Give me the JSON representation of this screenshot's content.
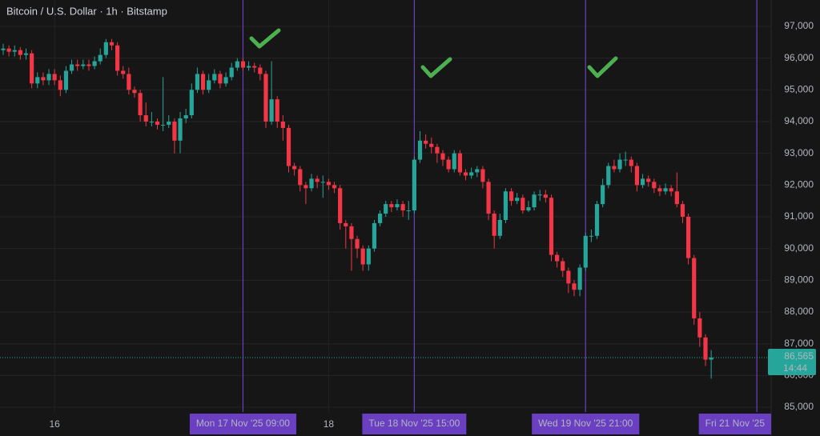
{
  "chart_data": {
    "type": "candlestick",
    "title": "Bitcoin / U.S. Dollar · 1h · Bitstamp",
    "categories": [
      null,
      null,
      null,
      null,
      null,
      null,
      null,
      null,
      null,
      "16",
      null,
      null,
      null,
      null,
      null,
      null,
      null,
      null,
      null,
      null,
      null,
      null,
      null,
      null,
      null,
      null,
      null,
      null,
      null,
      null,
      null,
      null,
      null,
      null,
      null,
      null,
      null,
      null,
      null,
      null,
      null,
      null,
      "Mon 17 Nov '25  09:00",
      null,
      null,
      null,
      null,
      null,
      null,
      null,
      null,
      null,
      null,
      null,
      null,
      null,
      null,
      "18",
      null,
      null,
      null,
      null,
      null,
      null,
      null,
      null,
      null,
      null,
      null,
      null,
      null,
      null,
      "Tue 18 Nov '25  15:00",
      null,
      null,
      null,
      null,
      null,
      null,
      null,
      null,
      null,
      null,
      null,
      null,
      null,
      null,
      null,
      null,
      null,
      null,
      null,
      null,
      null,
      null,
      null,
      null,
      null,
      null,
      null,
      null,
      null,
      "Wed 19 Nov '25  21:00",
      null,
      null,
      null,
      null,
      null,
      null,
      null,
      null,
      null,
      null,
      null,
      null,
      null,
      null,
      null,
      null,
      null,
      null,
      null,
      null,
      null,
      null,
      null,
      null,
      null,
      null,
      null,
      null,
      null,
      "Fri 21 Nov '25"
    ],
    "open": [
      96250,
      96300,
      96200,
      96250,
      96100,
      96150,
      95200,
      95400,
      95300,
      95500,
      95300,
      95000,
      95600,
      95800,
      95750,
      95800,
      95750,
      95900,
      96100,
      96500,
      96400,
      95600,
      95500,
      95000,
      94900,
      94200,
      94000,
      94000,
      93900,
      93900,
      94000,
      93400,
      94100,
      94200,
      95000,
      95500,
      95000,
      95300,
      95500,
      95200,
      95400,
      95700,
      95900,
      95700,
      95750,
      95700,
      95500,
      94000,
      94700,
      94000,
      93800,
      92600,
      92500,
      92000,
      91900,
      92200,
      92100,
      92100,
      92000,
      91900,
      90800,
      90700,
      90300,
      90000,
      89500,
      90000,
      90800,
      91100,
      91400,
      91300,
      91400,
      91200,
      91200,
      92800,
      93400,
      93300,
      93200,
      93000,
      92800,
      92500,
      93000,
      92400,
      92300,
      92400,
      92500,
      92100,
      91100,
      90400,
      90900,
      91800,
      91500,
      91600,
      91200,
      91300,
      91700,
      91700,
      91600,
      89800,
      89600,
      89300,
      88900,
      88700,
      89400,
      90400,
      90400,
      91400,
      92000,
      92600,
      92500,
      92800,
      92800,
      92600,
      92000,
      92200,
      92100,
      91900,
      91800,
      91900,
      91800,
      91400,
      91000,
      89700,
      87800,
      87200,
      86500,
      null,
      null,
      null,
      null,
      null,
      null,
      null,
      null
    ],
    "high": [
      96450,
      96400,
      96400,
      96350,
      96300,
      96250,
      95550,
      95550,
      95650,
      95650,
      95450,
      95750,
      95950,
      95950,
      95950,
      95950,
      96050,
      96300,
      96600,
      96600,
      96500,
      95750,
      95700,
      95100,
      95000,
      94600,
      94300,
      94100,
      95400,
      94200,
      94100,
      94300,
      94400,
      95200,
      95700,
      95600,
      95500,
      95650,
      95600,
      95550,
      95850,
      96000,
      96000,
      95900,
      95850,
      95800,
      95600,
      95900,
      94800,
      94200,
      93900,
      92700,
      92600,
      92100,
      92350,
      92300,
      92300,
      92200,
      92100,
      92000,
      90900,
      90800,
      90400,
      90100,
      90100,
      90900,
      91200,
      91500,
      91500,
      91550,
      91500,
      91500,
      92900,
      93700,
      93600,
      93500,
      93300,
      93100,
      92900,
      93100,
      93100,
      92500,
      92550,
      92600,
      92600,
      92200,
      91200,
      91100,
      91900,
      91900,
      91750,
      91700,
      91500,
      91800,
      91850,
      91850,
      91700,
      89900,
      89700,
      89400,
      89000,
      89500,
      90500,
      90600,
      91500,
      92200,
      92700,
      92800,
      93000,
      93050,
      92900,
      92700,
      92350,
      92300,
      92200,
      92000,
      92050,
      92000,
      92400,
      91500,
      91100,
      89800,
      88000,
      87300,
      86800,
      null,
      null,
      null,
      null,
      null,
      null,
      null,
      null
    ],
    "low": [
      96100,
      96050,
      96050,
      95950,
      95950,
      95050,
      95050,
      95150,
      95150,
      95150,
      94800,
      94900,
      95500,
      95600,
      95650,
      95600,
      95650,
      95800,
      96000,
      96250,
      95450,
      95350,
      94850,
      94750,
      94000,
      93850,
      93850,
      93750,
      93700,
      93800,
      93000,
      93000,
      93950,
      94100,
      94900,
      94850,
      94900,
      95200,
      95050,
      95100,
      95300,
      95600,
      95600,
      95600,
      95550,
      95300,
      93800,
      93900,
      93800,
      93400,
      92400,
      92300,
      91800,
      91400,
      91800,
      91900,
      91600,
      91850,
      91750,
      90600,
      90000,
      89300,
      89700,
      89300,
      89300,
      89900,
      90700,
      91000,
      91150,
      91200,
      91000,
      90900,
      91100,
      92700,
      93150,
      93000,
      92700,
      92600,
      92400,
      92400,
      92300,
      92150,
      92200,
      92250,
      91900,
      90900,
      90000,
      90300,
      90800,
      91350,
      91400,
      91100,
      91150,
      91200,
      91500,
      91450,
      89600,
      89400,
      89100,
      88600,
      88500,
      88500,
      89300,
      90200,
      90300,
      91300,
      91900,
      92400,
      92400,
      92600,
      92400,
      91800,
      91900,
      91950,
      91750,
      91650,
      91700,
      91650,
      91300,
      90800,
      89500,
      87600,
      86900,
      86300,
      85900,
      null,
      null,
      null,
      null,
      null,
      null,
      null,
      null
    ],
    "close": [
      96300,
      96200,
      96250,
      96100,
      96150,
      95200,
      95400,
      95300,
      95500,
      95300,
      95000,
      95600,
      95800,
      95750,
      95800,
      95750,
      95900,
      96100,
      96500,
      96400,
      95600,
      95500,
      95000,
      94900,
      94200,
      94000,
      94000,
      93900,
      93900,
      94000,
      93400,
      94100,
      94200,
      95000,
      95500,
      95000,
      95300,
      95500,
      95200,
      95400,
      95700,
      95900,
      95700,
      95750,
      95700,
      95500,
      94000,
      94700,
      94000,
      93800,
      92600,
      92500,
      92000,
      91900,
      92200,
      92100,
      92100,
      92000,
      91900,
      90800,
      90700,
      90300,
      90000,
      89500,
      90000,
      90800,
      91100,
      91400,
      91300,
      91400,
      91200,
      91200,
      92800,
      93400,
      93300,
      93200,
      93000,
      92800,
      92500,
      93000,
      92400,
      92300,
      92400,
      92500,
      92100,
      91100,
      90400,
      90900,
      91800,
      91500,
      91600,
      91200,
      91300,
      91700,
      91700,
      91600,
      89800,
      89600,
      89300,
      88900,
      88700,
      89400,
      90400,
      90400,
      91400,
      92000,
      92600,
      92500,
      92800,
      92800,
      92600,
      92000,
      92200,
      92100,
      91900,
      91800,
      91900,
      91800,
      91400,
      91000,
      89700,
      87800,
      87200,
      86500,
      86565,
      null,
      null,
      null,
      null,
      null,
      null,
      null,
      null
    ],
    "up_color": "#26a69a",
    "down_color": "#f23645",
    "marker_color": "#6b3fc2",
    "ylim": [
      84850,
      97830
    ],
    "yticks": [
      {
        "value": 85000,
        "label": "85,000"
      },
      {
        "value": 86000,
        "label": "86,000"
      },
      {
        "value": 87000,
        "label": "87,000"
      },
      {
        "value": 88000,
        "label": "88,000"
      },
      {
        "value": 89000,
        "label": "89,000"
      },
      {
        "value": 90000,
        "label": "90,000"
      },
      {
        "value": 91000,
        "label": "91,000"
      },
      {
        "value": 92000,
        "label": "92,000"
      },
      {
        "value": 93000,
        "label": "93,000"
      },
      {
        "value": 94000,
        "label": "94,000"
      },
      {
        "value": 95000,
        "label": "95,000"
      },
      {
        "value": 96000,
        "label": "96,000"
      },
      {
        "value": 97000,
        "label": "97,000"
      }
    ],
    "grid": true,
    "last_price": {
      "value": 86565,
      "label": "86,565"
    },
    "countdown": "14:44"
  }
}
